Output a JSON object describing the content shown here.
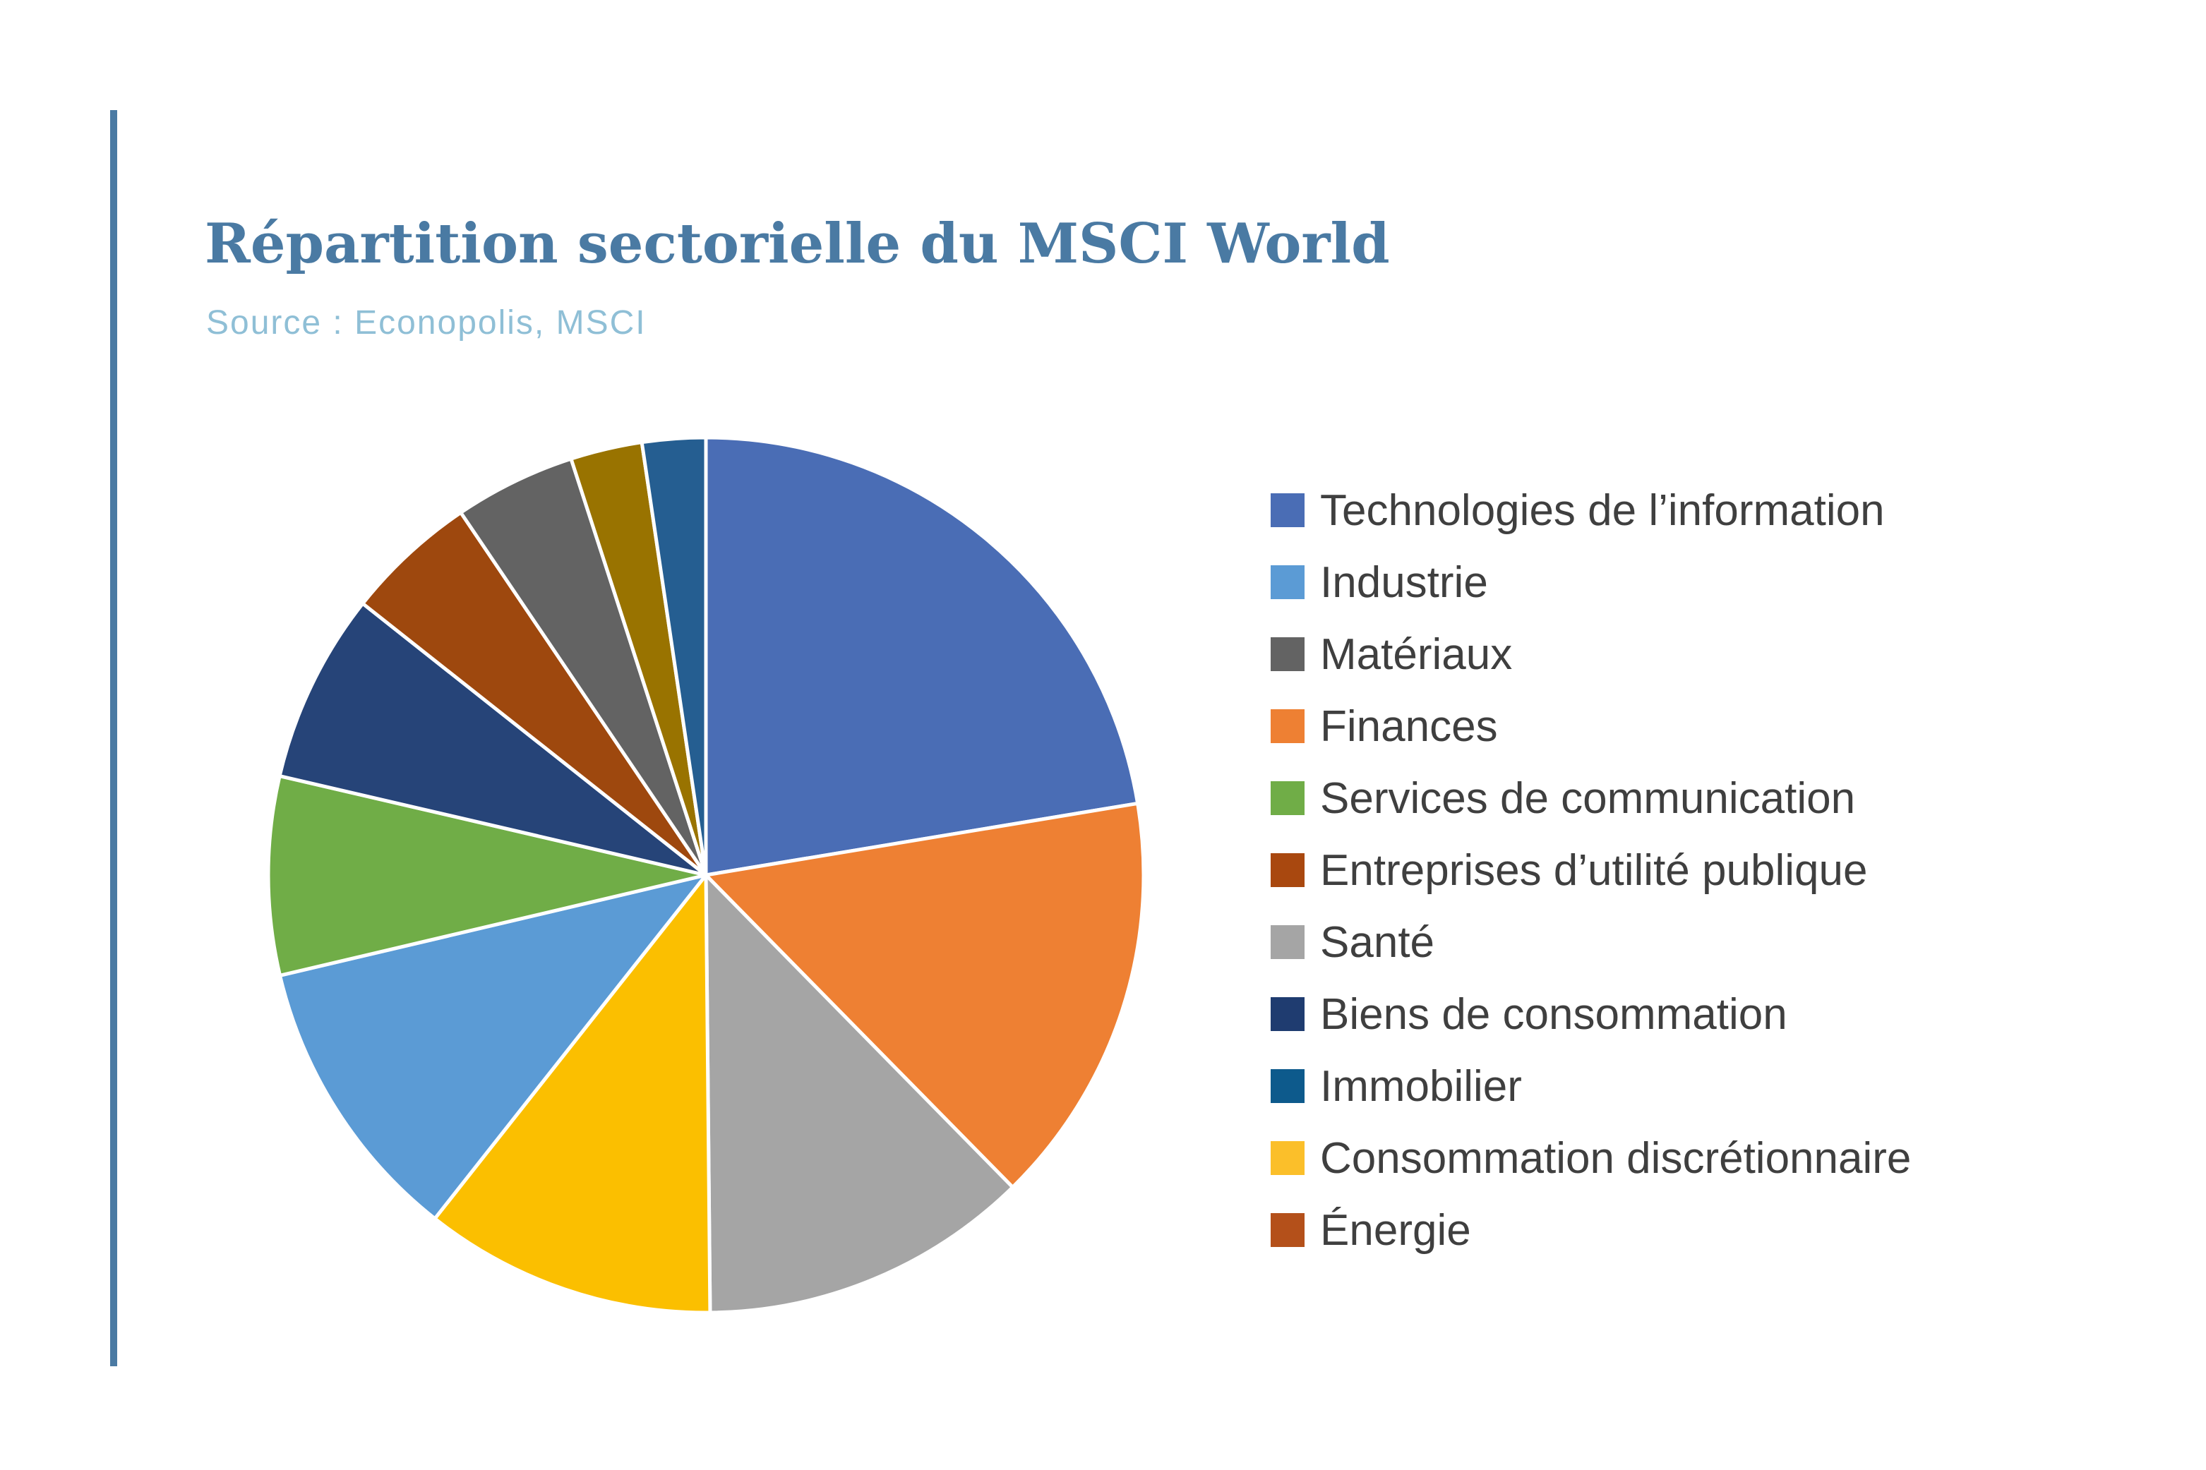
{
  "chart_data": {
    "type": "pie",
    "title": "Répartition sectorielle du MSCI World",
    "subtitle": "Source : Econopolis, MSCI",
    "legend_position": "right",
    "series": [
      {
        "name": "Technologies de l’information",
        "value": 22.0,
        "color": "#4a6db5"
      },
      {
        "name": "Finances",
        "value": 15.0,
        "color": "#ee8033"
      },
      {
        "name": "Santé",
        "value": 12.0,
        "color": "#a5a5a5"
      },
      {
        "name": "Consommation discrétionnaire",
        "value": 10.6,
        "color": "#fbbf00"
      },
      {
        "name": "Industrie",
        "value": 10.5,
        "color": "#5b9bd5"
      },
      {
        "name": "Services de communication",
        "value": 7.2,
        "color": "#70ad47"
      },
      {
        "name": "Biens de consommation",
        "value": 6.9,
        "color": "#264478"
      },
      {
        "name": "Entreprises d’utilité publique",
        "value": 4.8,
        "color": "#9e480e"
      },
      {
        "name": "Matériaux",
        "value": 4.4,
        "color": "#636363"
      },
      {
        "name": "Énergie",
        "value": 2.6,
        "color": "#997300"
      },
      {
        "name": "Immobilier",
        "value": 2.3,
        "color": "#255e91"
      }
    ],
    "legend": [
      {
        "label": "Technologies de l’information",
        "color": "#4a6db5"
      },
      {
        "label": "Industrie",
        "color": "#5b9bd5"
      },
      {
        "label": "Matériaux",
        "color": "#636363"
      },
      {
        "label": "Finances",
        "color": "#ee8033"
      },
      {
        "label": "Services de communication",
        "color": "#70ad47"
      },
      {
        "label": "Entreprises d’utilité publique",
        "color": "#a9480f"
      },
      {
        "label": "Santé",
        "color": "#a5a5a5"
      },
      {
        "label": "Biens de consommation",
        "color": "#1f3c70"
      },
      {
        "label": "Immobilier",
        "color": "#0d5a8c"
      },
      {
        "label": "Consommation discrétionnaire",
        "color": "#fbbf2a"
      },
      {
        "label": "Énergie",
        "color": "#b4501a"
      }
    ]
  }
}
